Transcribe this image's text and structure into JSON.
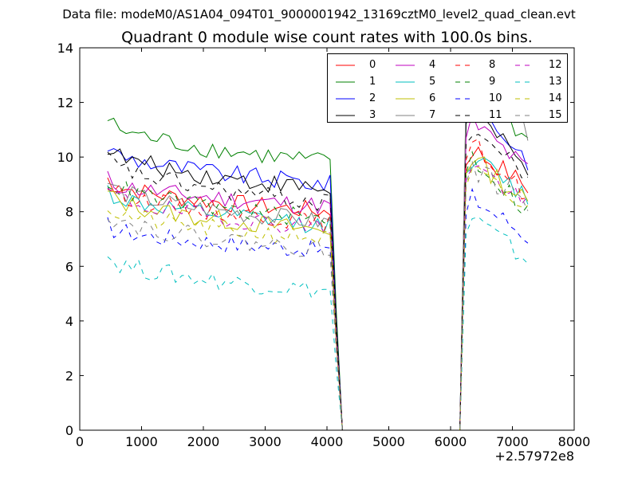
{
  "figure": {
    "suptitle": "Data file: modeM0/AS1A04_094T01_9000001942_13169cztM0_level2_quad_clean.evt",
    "title": "Quadrant 0 module wise count rates with 100.0s bins.",
    "x_offset_label": "+2.57972e8"
  },
  "chart_data": {
    "type": "line",
    "xlim": [
      0,
      8000
    ],
    "ylim": [
      0,
      14
    ],
    "x_ticks": [
      0,
      1000,
      2000,
      3000,
      4000,
      5000,
      6000,
      7000,
      8000
    ],
    "y_ticks": [
      0,
      2,
      4,
      6,
      8,
      10,
      12,
      14
    ],
    "grid": false,
    "legend_location": "upper right",
    "legend_columns": 4,
    "segment_a": {
      "x_start": 450,
      "x_end": 4050,
      "step": 100
    },
    "drop": [
      4150,
      4250
    ],
    "gap": [
      4350,
      6050
    ],
    "rise": [
      6150,
      6250
    ],
    "segment_b": {
      "x_start": 6350,
      "x_end": 7250,
      "step": 100
    },
    "series": [
      {
        "name": "0",
        "color": "#ff0000",
        "dash": "solid",
        "level_a": [
          9.2,
          8.0
        ],
        "level_b": [
          10.3,
          8.9
        ]
      },
      {
        "name": "1",
        "color": "#008000",
        "dash": "solid",
        "level_a": [
          11.4,
          9.8
        ],
        "level_b": [
          12.7,
          10.6
        ]
      },
      {
        "name": "2",
        "color": "#0000ff",
        "dash": "solid",
        "level_a": [
          10.4,
          9.0
        ],
        "level_b": [
          12.0,
          9.9
        ]
      },
      {
        "name": "3",
        "color": "#000000",
        "dash": "solid",
        "level_a": [
          10.4,
          8.8
        ],
        "level_b": [
          11.8,
          9.4
        ]
      },
      {
        "name": "4",
        "color": "#bf00bf",
        "dash": "solid",
        "level_a": [
          9.2,
          8.2
        ],
        "level_b": [
          11.3,
          9.5
        ]
      },
      {
        "name": "5",
        "color": "#00bfbf",
        "dash": "solid",
        "level_a": [
          8.8,
          7.5
        ],
        "level_b": [
          10.0,
          8.5
        ]
      },
      {
        "name": "6",
        "color": "#bfbf00",
        "dash": "solid",
        "level_a": [
          8.7,
          7.3
        ],
        "level_b": [
          10.0,
          8.3
        ]
      },
      {
        "name": "7",
        "color": "#808080",
        "dash": "solid",
        "level_a": [
          9.1,
          7.6
        ],
        "level_b": [
          12.9,
          11.0
        ]
      },
      {
        "name": "8",
        "color": "#ff0000",
        "dash": "dashed",
        "level_a": [
          9.0,
          7.6
        ],
        "level_b": [
          10.5,
          8.6
        ]
      },
      {
        "name": "9",
        "color": "#008000",
        "dash": "dashed",
        "level_a": [
          9.2,
          7.7
        ],
        "level_b": [
          10.0,
          8.0
        ]
      },
      {
        "name": "10",
        "color": "#0000ff",
        "dash": "dashed",
        "level_a": [
          7.5,
          6.6
        ],
        "level_b": [
          8.5,
          7.1
        ]
      },
      {
        "name": "11",
        "color": "#000000",
        "dash": "dashed",
        "level_a": [
          10.0,
          8.3
        ],
        "level_b": [
          11.1,
          9.2
        ]
      },
      {
        "name": "12",
        "color": "#bf00bf",
        "dash": "dashed",
        "level_a": [
          8.8,
          7.4
        ],
        "level_b": [
          9.8,
          8.2
        ]
      },
      {
        "name": "13",
        "color": "#00bfbf",
        "dash": "dashed",
        "level_a": [
          6.4,
          5.1
        ],
        "level_b": [
          7.8,
          6.2
        ]
      },
      {
        "name": "14",
        "color": "#bfbf00",
        "dash": "dashed",
        "level_a": [
          8.2,
          7.0
        ],
        "level_b": [
          9.5,
          8.0
        ]
      },
      {
        "name": "15",
        "color": "#808080",
        "dash": "dashed",
        "level_a": [
          8.0,
          6.6
        ],
        "level_b": [
          9.6,
          8.3
        ]
      }
    ]
  }
}
